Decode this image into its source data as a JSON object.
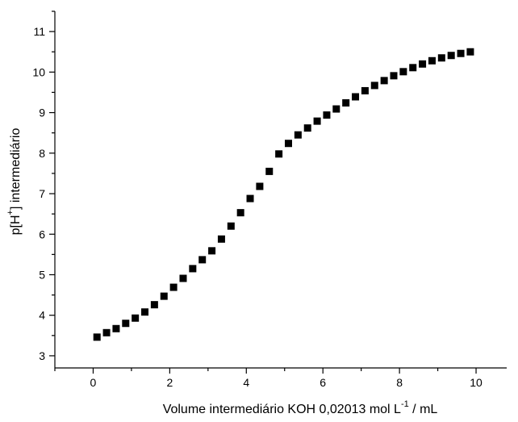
{
  "chart_data": {
    "type": "scatter",
    "xlabel": {
      "main": "Volume intermediário KOH 0,02013 mol L",
      "sup": "-1",
      "tail": " / mL"
    },
    "ylabel": {
      "main": "p[H",
      "sup": "+",
      "tail": "] intermediário"
    },
    "xlim": [
      -1,
      10.8
    ],
    "ylim": [
      2.7,
      11.5
    ],
    "x_ticks": [
      0,
      2,
      4,
      6,
      8,
      10
    ],
    "y_ticks": [
      3,
      4,
      5,
      6,
      7,
      8,
      9,
      10,
      11
    ],
    "marker": "square",
    "color": "#000000",
    "series": [
      {
        "x": [
          0.1,
          0.35,
          0.6,
          0.85,
          1.1,
          1.35,
          1.6,
          1.85,
          2.1,
          2.35,
          2.6,
          2.85,
          3.1,
          3.35,
          3.6,
          3.85,
          4.1,
          4.35,
          4.6,
          4.85,
          5.1,
          5.35,
          5.6,
          5.85,
          6.1,
          6.35,
          6.6,
          6.85,
          7.1,
          7.35,
          7.6,
          7.85,
          8.1,
          8.35,
          8.6,
          8.85,
          9.1,
          9.35,
          9.6,
          9.85
        ],
        "y": [
          3.46,
          3.57,
          3.67,
          3.8,
          3.93,
          4.08,
          4.26,
          4.47,
          4.69,
          4.91,
          5.15,
          5.37,
          5.59,
          5.88,
          6.2,
          6.53,
          6.88,
          7.18,
          7.55,
          7.98,
          8.24,
          8.45,
          8.62,
          8.79,
          8.94,
          9.09,
          9.24,
          9.39,
          9.54,
          9.67,
          9.79,
          9.91,
          10.01,
          10.11,
          10.2,
          10.28,
          10.35,
          10.41,
          10.46,
          10.5
        ]
      }
    ]
  }
}
